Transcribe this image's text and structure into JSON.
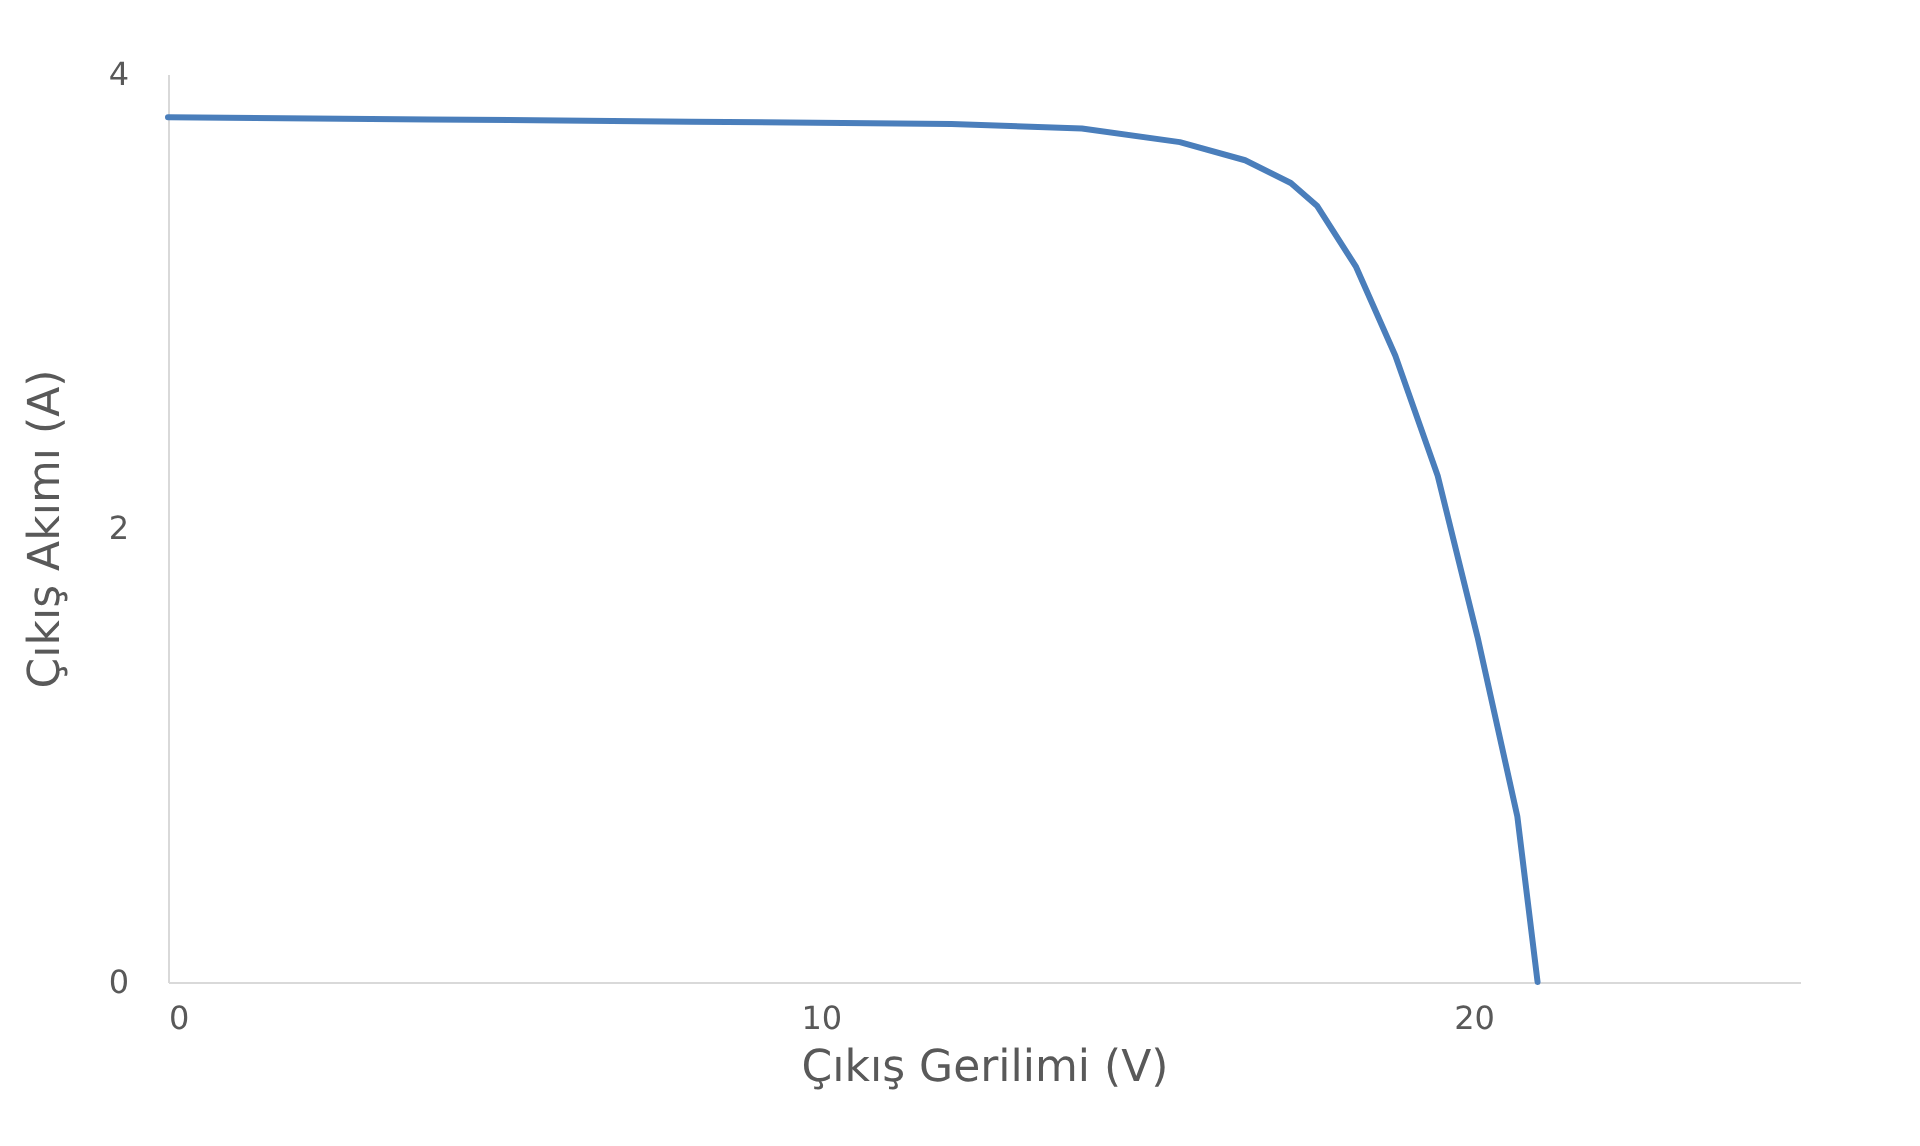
{
  "chart_data": {
    "type": "line",
    "xlabel": "Çıkış Gerilimi (V)",
    "ylabel": "Çıkış Akımı (A)",
    "x": [
      0,
      4,
      8,
      12,
      14,
      15.5,
      16.5,
      17.2,
      17.6,
      18.2,
      18.8,
      19.45,
      20.06,
      20.67,
      20.98
    ],
    "series": [
      {
        "color": "#4a7ebb",
        "values": [
          3.81,
          3.8,
          3.79,
          3.78,
          3.76,
          3.7,
          3.62,
          3.52,
          3.42,
          3.15,
          2.76,
          2.23,
          1.52,
          0.73,
          0.0
        ]
      }
    ],
    "xlim": [
      0,
      25
    ],
    "xticks": [
      0,
      10,
      20
    ],
    "ylim": [
      0,
      4
    ],
    "yticks": [
      0,
      2,
      4
    ],
    "grid": false,
    "legend": false,
    "marker": "none",
    "line_style": "solid"
  }
}
